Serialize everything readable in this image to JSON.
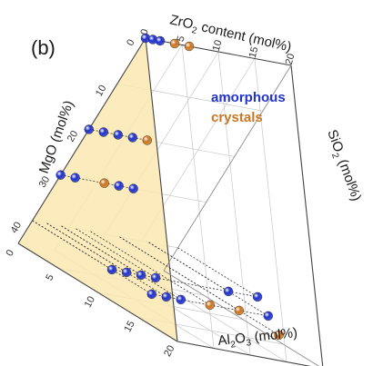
{
  "chart_data": {
    "type": "scatter",
    "panel_label": "(b)",
    "axes": {
      "zro2": {
        "label_main": "ZrO",
        "label_sub": "2",
        "label_rest": " content (mol%)",
        "ticks": [
          "0",
          "5",
          "10",
          "15",
          "20"
        ]
      },
      "mgo": {
        "label": "MgO (mol%)",
        "ticks": [
          "0",
          "10",
          "20",
          "30",
          "40"
        ]
      },
      "sio2": {
        "label_main": "SiO",
        "label_sub": "2",
        "label_rest": " (mol%)"
      },
      "al2o3": {
        "label_pre": "Al",
        "label_sub1": "2",
        "label_mid": "O",
        "label_sub2": "3",
        "label_rest": " (mol%)",
        "ticks": [
          "0",
          "5",
          "10",
          "15",
          "20"
        ]
      }
    },
    "legend": [
      {
        "name": "amorphous",
        "color": "#2233cc"
      },
      {
        "name": "crystals",
        "color": "#cc7722"
      }
    ],
    "grid": true,
    "series": [
      {
        "name": "amorphous",
        "color": "#2233cc",
        "points": [
          {
            "mgo": 0,
            "zro2": 0,
            "al2o3": 0
          },
          {
            "mgo": 0,
            "zro2": 1,
            "al2o3": 0
          },
          {
            "mgo": 0,
            "zro2": 2,
            "al2o3": 0
          },
          {
            "mgo": 20,
            "zro2": 0,
            "al2o3": 0
          },
          {
            "mgo": 20,
            "zro2": 2,
            "al2o3": 0
          },
          {
            "mgo": 20,
            "zro2": 4,
            "al2o3": 0
          },
          {
            "mgo": 20,
            "zro2": 6,
            "al2o3": 0
          },
          {
            "mgo": 30,
            "zro2": 0,
            "al2o3": 0
          },
          {
            "mgo": 30,
            "zro2": 2,
            "al2o3": 0
          },
          {
            "mgo": 30,
            "zro2": 8,
            "al2o3": 0
          },
          {
            "mgo": 30,
            "zro2": 10,
            "al2o3": 0
          },
          {
            "mgo": 40,
            "zro2": 0,
            "al2o3": 10
          },
          {
            "mgo": 40,
            "zro2": 2,
            "al2o3": 10
          },
          {
            "mgo": 40,
            "zro2": 4,
            "al2o3": 10
          },
          {
            "mgo": 40,
            "zro2": 6,
            "al2o3": 10
          },
          {
            "mgo": 40,
            "zro2": 16,
            "al2o3": 10
          },
          {
            "mgo": 40,
            "zro2": 20,
            "al2o3": 10
          },
          {
            "mgo": 40,
            "zro2": 0,
            "al2o3": 15
          },
          {
            "mgo": 40,
            "zro2": 2,
            "al2o3": 15
          },
          {
            "mgo": 40,
            "zro2": 4,
            "al2o3": 15
          },
          {
            "mgo": 40,
            "zro2": 16,
            "al2o3": 15
          }
        ]
      },
      {
        "name": "crystals",
        "color": "#cc7722",
        "points": [
          {
            "mgo": 0,
            "zro2": 4,
            "al2o3": 0
          },
          {
            "mgo": 0,
            "zro2": 6,
            "al2o3": 0
          },
          {
            "mgo": 20,
            "zro2": 8,
            "al2o3": 0
          },
          {
            "mgo": 30,
            "zro2": 6,
            "al2o3": 0
          },
          {
            "mgo": 40,
            "zro2": 8,
            "al2o3": 15
          },
          {
            "mgo": 40,
            "zro2": 12,
            "al2o3": 15
          },
          {
            "mgo": 40,
            "zro2": 12,
            "al2o3": 20
          }
        ]
      }
    ]
  }
}
